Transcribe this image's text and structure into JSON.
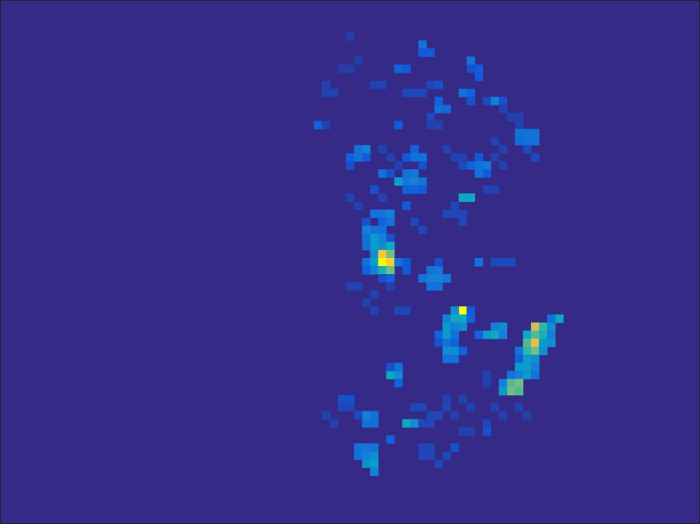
{
  "chart_data": {
    "type": "heatmap",
    "tick_labels": false,
    "xlim": [
      0,
      87
    ],
    "ylim": [
      0,
      65
    ],
    "color_range": [
      0,
      1
    ],
    "background_value": 0,
    "cells": [
      [
        43,
        4,
        0.05
      ],
      [
        52,
        5,
        0.2
      ],
      [
        53,
        6,
        0.12
      ],
      [
        52,
        6,
        0.12
      ],
      [
        58,
        7,
        0.2
      ],
      [
        59,
        8,
        0.12
      ],
      [
        58,
        8,
        0.1
      ],
      [
        59,
        9,
        0.12
      ],
      [
        49,
        8,
        0.15
      ],
      [
        50,
        8,
        0.12
      ],
      [
        42,
        8,
        0.05
      ],
      [
        43,
        8,
        0.05
      ],
      [
        44,
        7,
        0.05
      ],
      [
        40,
        10,
        0.06
      ],
      [
        41,
        11,
        0.06
      ],
      [
        40,
        11,
        0.06
      ],
      [
        46,
        10,
        0.06
      ],
      [
        47,
        10,
        0.06
      ],
      [
        50,
        11,
        0.07
      ],
      [
        51,
        11,
        0.07
      ],
      [
        52,
        11,
        0.07
      ],
      [
        53,
        10,
        0.07
      ],
      [
        54,
        10,
        0.1
      ],
      [
        54,
        13,
        0.2
      ],
      [
        55,
        13,
        0.18
      ],
      [
        54,
        12,
        0.15
      ],
      [
        53,
        14,
        0.08
      ],
      [
        57,
        11,
        0.2
      ],
      [
        58,
        11,
        0.15
      ],
      [
        58,
        12,
        0.1
      ],
      [
        60,
        12,
        0.08
      ],
      [
        61,
        12,
        0.25
      ],
      [
        62,
        12,
        0.1
      ],
      [
        39,
        15,
        0.15
      ],
      [
        40,
        15,
        0.06
      ],
      [
        49,
        15,
        0.12
      ],
      [
        53,
        15,
        0.06
      ],
      [
        54,
        15,
        0.06
      ],
      [
        62,
        13,
        0.06
      ],
      [
        63,
        14,
        0.06
      ],
      [
        64,
        14,
        0.06
      ],
      [
        64,
        15,
        0.06
      ],
      [
        64,
        16,
        0.2
      ],
      [
        65,
        16,
        0.2
      ],
      [
        66,
        16,
        0.2
      ],
      [
        64,
        17,
        0.18
      ],
      [
        65,
        17,
        0.2
      ],
      [
        66,
        17,
        0.2
      ],
      [
        65,
        18,
        0.08
      ],
      [
        66,
        19,
        0.08
      ],
      [
        62,
        18,
        0.06
      ],
      [
        61,
        17,
        0.06
      ],
      [
        44,
        18,
        0.2
      ],
      [
        45,
        18,
        0.25
      ],
      [
        43,
        19,
        0.15
      ],
      [
        44,
        19,
        0.2
      ],
      [
        45,
        19,
        0.12
      ],
      [
        43,
        20,
        0.1
      ],
      [
        47,
        18,
        0.06
      ],
      [
        48,
        19,
        0.06
      ],
      [
        49,
        20,
        0.06
      ],
      [
        51,
        18,
        0.15
      ],
      [
        52,
        19,
        0.2
      ],
      [
        51,
        19,
        0.2
      ],
      [
        50,
        19,
        0.12
      ],
      [
        52,
        20,
        0.1
      ],
      [
        55,
        18,
        0.06
      ],
      [
        56,
        19,
        0.06
      ],
      [
        57,
        19,
        0.06
      ],
      [
        59,
        19,
        0.12
      ],
      [
        59,
        20,
        0.2
      ],
      [
        60,
        20,
        0.22
      ],
      [
        58,
        20,
        0.15
      ],
      [
        59,
        21,
        0.2
      ],
      [
        60,
        21,
        0.12
      ],
      [
        57,
        20,
        0.08
      ],
      [
        61,
        19,
        0.06
      ],
      [
        62,
        20,
        0.06
      ],
      [
        47,
        21,
        0.2
      ],
      [
        48,
        21,
        0.1
      ],
      [
        49,
        22,
        0.35
      ],
      [
        50,
        22,
        0.22
      ],
      [
        51,
        22,
        0.25
      ],
      [
        52,
        22,
        0.2
      ],
      [
        50,
        21,
        0.2
      ],
      [
        51,
        21,
        0.22
      ],
      [
        50,
        23,
        0.15
      ],
      [
        51,
        23,
        0.15
      ],
      [
        52,
        23,
        0.12
      ],
      [
        57,
        24,
        0.4
      ],
      [
        58,
        24,
        0.4
      ],
      [
        46,
        23,
        0.1
      ],
      [
        47,
        24,
        0.06
      ],
      [
        43,
        24,
        0.06
      ],
      [
        44,
        25,
        0.06
      ],
      [
        50,
        25,
        0.12
      ],
      [
        55,
        26,
        0.07
      ],
      [
        56,
        26,
        0.07
      ],
      [
        57,
        26,
        0.07
      ],
      [
        56,
        25,
        0.07
      ],
      [
        57,
        27,
        0.07
      ],
      [
        60,
        23,
        0.06
      ],
      [
        61,
        23,
        0.06
      ],
      [
        46,
        26,
        0.2
      ],
      [
        47,
        26,
        0.2
      ],
      [
        48,
        26,
        0.25
      ],
      [
        48,
        27,
        0.2
      ],
      [
        47,
        27,
        0.15
      ],
      [
        45,
        27,
        0.1
      ],
      [
        51,
        27,
        0.07
      ],
      [
        52,
        28,
        0.07
      ],
      [
        45,
        28,
        0.25
      ],
      [
        46,
        28,
        0.2
      ],
      [
        46,
        29,
        0.35
      ],
      [
        47,
        29,
        0.25
      ],
      [
        45,
        29,
        0.2
      ],
      [
        47,
        28,
        0.2
      ],
      [
        48,
        29,
        0.1
      ],
      [
        46,
        30,
        0.35
      ],
      [
        47,
        30,
        0.3
      ],
      [
        48,
        30,
        0.4
      ],
      [
        45,
        30,
        0.2
      ],
      [
        46,
        31,
        0.3
      ],
      [
        47,
        31,
        0.85
      ],
      [
        48,
        31,
        0.6
      ],
      [
        46,
        32,
        0.35
      ],
      [
        47,
        32,
        1.0
      ],
      [
        48,
        32,
        0.9
      ],
      [
        49,
        32,
        0.2
      ],
      [
        46,
        33,
        0.25
      ],
      [
        47,
        33,
        0.45
      ],
      [
        48,
        33,
        0.6
      ],
      [
        45,
        32,
        0.2
      ],
      [
        45,
        33,
        0.15
      ],
      [
        48,
        34,
        0.15
      ],
      [
        47,
        34,
        0.1
      ],
      [
        50,
        32,
        0.12
      ],
      [
        50,
        33,
        0.12
      ],
      [
        53,
        33,
        0.2
      ],
      [
        54,
        33,
        0.22
      ],
      [
        52,
        34,
        0.2
      ],
      [
        53,
        34,
        0.25
      ],
      [
        54,
        34,
        0.25
      ],
      [
        55,
        34,
        0.22
      ],
      [
        53,
        35,
        0.2
      ],
      [
        54,
        35,
        0.2
      ],
      [
        54,
        32,
        0.1
      ],
      [
        59,
        32,
        0.2
      ],
      [
        61,
        32,
        0.08
      ],
      [
        62,
        32,
        0.08
      ],
      [
        63,
        32,
        0.08
      ],
      [
        43,
        35,
        0.06
      ],
      [
        44,
        35,
        0.06
      ],
      [
        46,
        36,
        0.06
      ],
      [
        48,
        35,
        0.06
      ],
      [
        45,
        37,
        0.06
      ],
      [
        46,
        38,
        0.06
      ],
      [
        49,
        38,
        0.07
      ],
      [
        50,
        38,
        0.07
      ],
      [
        57,
        38,
        1.0
      ],
      [
        56,
        38,
        0.3
      ],
      [
        58,
        38,
        0.12
      ],
      [
        55,
        39,
        0.25
      ],
      [
        56,
        39,
        0.4
      ],
      [
        57,
        39,
        0.4
      ],
      [
        58,
        39,
        0.15
      ],
      [
        55,
        40,
        0.35
      ],
      [
        56,
        40,
        0.25
      ],
      [
        57,
        40,
        0.3
      ],
      [
        54,
        41,
        0.15
      ],
      [
        55,
        41,
        0.35
      ],
      [
        56,
        41,
        0.2
      ],
      [
        54,
        42,
        0.1
      ],
      [
        55,
        42,
        0.2
      ],
      [
        56,
        42,
        0.15
      ],
      [
        55,
        43,
        0.3
      ],
      [
        56,
        43,
        0.3
      ],
      [
        57,
        43,
        0.15
      ],
      [
        55,
        44,
        0.2
      ],
      [
        56,
        44,
        0.2
      ],
      [
        61,
        40,
        0.25
      ],
      [
        62,
        40,
        0.3
      ],
      [
        61,
        41,
        0.4
      ],
      [
        60,
        41,
        0.35
      ],
      [
        62,
        41,
        0.25
      ],
      [
        59,
        41,
        0.15
      ],
      [
        66,
        40,
        0.75
      ],
      [
        67,
        40,
        0.5
      ],
      [
        68,
        40,
        0.3
      ],
      [
        69,
        39,
        0.4
      ],
      [
        68,
        39,
        0.2
      ],
      [
        65,
        41,
        0.4
      ],
      [
        66,
        41,
        0.55
      ],
      [
        67,
        41,
        0.45
      ],
      [
        68,
        41,
        0.25
      ],
      [
        65,
        42,
        0.55
      ],
      [
        66,
        42,
        0.8
      ],
      [
        67,
        42,
        0.35
      ],
      [
        68,
        42,
        0.3
      ],
      [
        64,
        43,
        0.2
      ],
      [
        65,
        43,
        0.5
      ],
      [
        66,
        43,
        0.6
      ],
      [
        67,
        43,
        0.3
      ],
      [
        64,
        44,
        0.15
      ],
      [
        65,
        44,
        0.35
      ],
      [
        66,
        44,
        0.3
      ],
      [
        64,
        45,
        0.35
      ],
      [
        65,
        45,
        0.35
      ],
      [
        66,
        45,
        0.25
      ],
      [
        63,
        46,
        0.2
      ],
      [
        64,
        46,
        0.25
      ],
      [
        65,
        46,
        0.35
      ],
      [
        66,
        46,
        0.2
      ],
      [
        62,
        47,
        0.25
      ],
      [
        63,
        47,
        0.55
      ],
      [
        64,
        47,
        0.6
      ],
      [
        63,
        48,
        0.6
      ],
      [
        64,
        48,
        0.55
      ],
      [
        62,
        48,
        0.35
      ],
      [
        60,
        46,
        0.06
      ],
      [
        60,
        47,
        0.06
      ],
      [
        48,
        46,
        0.4
      ],
      [
        49,
        46,
        0.3
      ],
      [
        49,
        45,
        0.2
      ],
      [
        48,
        45,
        0.1
      ],
      [
        49,
        47,
        0.15
      ],
      [
        42,
        49,
        0.1
      ],
      [
        43,
        49,
        0.1
      ],
      [
        42,
        50,
        0.07
      ],
      [
        43,
        50,
        0.07
      ],
      [
        45,
        51,
        0.25
      ],
      [
        46,
        51,
        0.2
      ],
      [
        45,
        52,
        0.2
      ],
      [
        46,
        52,
        0.2
      ],
      [
        44,
        51,
        0.08
      ],
      [
        50,
        52,
        0.4
      ],
      [
        51,
        52,
        0.3
      ],
      [
        51,
        50,
        0.07
      ],
      [
        52,
        50,
        0.07
      ],
      [
        53,
        51,
        0.07
      ],
      [
        54,
        51,
        0.07
      ],
      [
        55,
        50,
        0.07
      ],
      [
        52,
        52,
        0.07
      ],
      [
        53,
        52,
        0.07
      ],
      [
        55,
        49,
        0.06
      ],
      [
        56,
        51,
        0.06
      ],
      [
        57,
        49,
        0.06
      ],
      [
        58,
        50,
        0.06
      ],
      [
        60,
        53,
        0.1
      ],
      [
        60,
        52,
        0.07
      ],
      [
        61,
        50,
        0.06
      ],
      [
        62,
        51,
        0.06
      ],
      [
        64,
        50,
        0.06
      ],
      [
        65,
        51,
        0.06
      ],
      [
        48,
        54,
        0.15
      ],
      [
        44,
        55,
        0.2
      ],
      [
        45,
        55,
        0.22
      ],
      [
        46,
        55,
        0.2
      ],
      [
        44,
        56,
        0.2
      ],
      [
        45,
        56,
        0.25
      ],
      [
        46,
        56,
        0.3
      ],
      [
        45,
        57,
        0.3
      ],
      [
        46,
        57,
        0.35
      ],
      [
        46,
        58,
        0.25
      ],
      [
        52,
        55,
        0.07
      ],
      [
        53,
        55,
        0.07
      ],
      [
        52,
        56,
        0.07
      ],
      [
        53,
        56,
        0.07
      ],
      [
        54,
        57,
        0.07
      ],
      [
        55,
        56,
        0.07
      ],
      [
        56,
        55,
        0.1
      ],
      [
        40,
        51,
        0.06
      ],
      [
        41,
        52,
        0.06
      ],
      [
        57,
        53,
        0.06
      ],
      [
        58,
        53,
        0.06
      ]
    ]
  }
}
